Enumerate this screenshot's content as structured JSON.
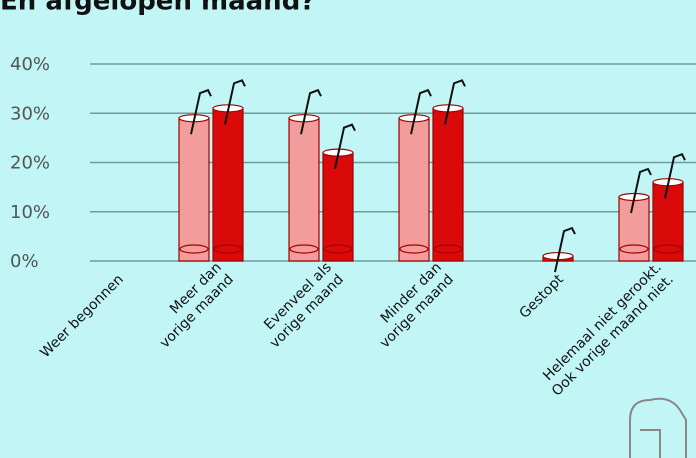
{
  "chart_data": {
    "type": "bar",
    "title": "En afgelopen maand?",
    "categories": [
      "Weer begonnen",
      "Meer dan\nvorige maand",
      "Evenveel als\nvorige maand",
      "Minder dan\nvorige maand",
      "Gestopt",
      "Helemaal niet gerookt.\nOok vorige maand niet."
    ],
    "series": [
      {
        "color": "#f29c9c",
        "values": [
          0,
          29,
          29,
          29,
          0,
          13
        ]
      },
      {
        "color": "#da0a0a",
        "values": [
          0,
          31,
          22,
          31,
          1,
          16
        ]
      }
    ],
    "ylim": [
      0,
      40
    ],
    "yticks": [
      {
        "value": 0,
        "label": "0%"
      },
      {
        "value": 10,
        "label": "10%"
      },
      {
        "value": 20,
        "label": "20%"
      },
      {
        "value": 30,
        "label": "30%"
      },
      {
        "value": 40,
        "label": "40%"
      }
    ],
    "grid": true
  }
}
